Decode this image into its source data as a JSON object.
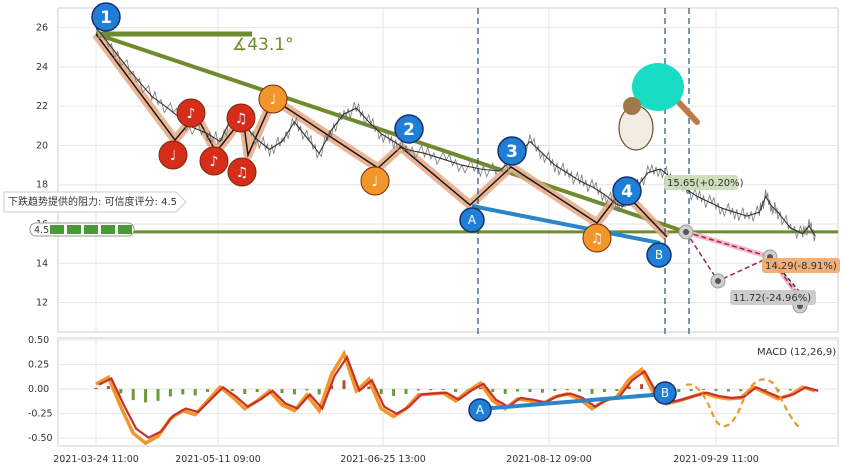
{
  "chart_data": [
    {
      "type": "line",
      "panel": "price",
      "ylim": [
        10.5,
        27
      ],
      "yticks": [
        12,
        14,
        16,
        18,
        20,
        22,
        24,
        26
      ],
      "grid": true,
      "x_categories": [
        "2021-03-24 11:00",
        "2021-05-11 09:00",
        "2021-06-25 13:00",
        "2021-08-12 09:00",
        "2021-09-29 11:00"
      ],
      "series": [
        {
          "values": [
            [
              0,
              26.0
            ],
            [
              3,
              24.8
            ],
            [
              6,
              23.6
            ],
            [
              9,
              22.5
            ],
            [
              12,
              21.8
            ],
            [
              15,
              21.0
            ],
            [
              18,
              20.6
            ],
            [
              20,
              20.2
            ],
            [
              22,
              21.5
            ],
            [
              24,
              21.0
            ],
            [
              26,
              20.3
            ],
            [
              28,
              19.8
            ],
            [
              30,
              20.2
            ],
            [
              32,
              21.2
            ],
            [
              34,
              20.4
            ],
            [
              36,
              19.6
            ],
            [
              38,
              20.8
            ],
            [
              40,
              21.6
            ],
            [
              42,
              21.9
            ],
            [
              44,
              21.2
            ],
            [
              46,
              20.6
            ],
            [
              48,
              20.2
            ],
            [
              50,
              19.8
            ],
            [
              53,
              19.6
            ],
            [
              56,
              19.3
            ],
            [
              59,
              19.0
            ],
            [
              62,
              18.8
            ],
            [
              65,
              18.7
            ],
            [
              68,
              19.5
            ],
            [
              70,
              20.2
            ],
            [
              72,
              19.6
            ],
            [
              74,
              19.0
            ],
            [
              76,
              18.6
            ],
            [
              78,
              18.2
            ],
            [
              80,
              17.9
            ],
            [
              82,
              17.5
            ],
            [
              84,
              17.0
            ],
            [
              85,
              16.9
            ],
            [
              87,
              17.8
            ],
            [
              89,
              18.6
            ],
            [
              91,
              18.8
            ],
            [
              93,
              18.3
            ],
            [
              95,
              17.8
            ],
            [
              97,
              17.4
            ],
            [
              99,
              17.1
            ],
            [
              101,
              16.8
            ],
            [
              103,
              16.6
            ],
            [
              105,
              16.4
            ],
            [
              107,
              16.6
            ],
            [
              108,
              17.4
            ],
            [
              109,
              16.9
            ],
            [
              110,
              16.6
            ],
            [
              112,
              15.8
            ],
            [
              114,
              15.5
            ],
            [
              115,
              15.9
            ],
            [
              116,
              15.4
            ]
          ]
        }
      ],
      "annotations": {
        "angle_label": "∡43.1°",
        "support_label": "下跌趋势提供的阻力: 可信度评分: 4.5",
        "score_label": "4.5",
        "callouts": [
          "15.65(+0.20%)",
          "14.29(-8.91%)",
          "11.72(-24.96%)"
        ],
        "wave_labels": [
          "1",
          "2",
          "3",
          "4"
        ],
        "divergence_labels": [
          "A",
          "B"
        ],
        "horizontal_level": 15.6
      }
    },
    {
      "type": "line",
      "panel": "macd",
      "title": "MACD (12,26,9)",
      "ylim": [
        -0.58,
        0.52
      ],
      "yticks": [
        0.5,
        0.25,
        0.0,
        -0.25,
        -0.5
      ],
      "ytick_labels": [
        "0.50",
        "0.25",
        "0.00",
        "-0.25",
        "-0.50"
      ],
      "grid": true,
      "x_categories": [
        "2021-03-24 11:00",
        "2021-05-11 09:00",
        "2021-06-25 13:00",
        "2021-08-12 09:00",
        "2021-09-29 11:00"
      ],
      "series": [
        {
          "values": [
            [
              0,
              0.05
            ],
            [
              2,
              0.12
            ],
            [
              4,
              -0.18
            ],
            [
              6,
              -0.45
            ],
            [
              8,
              -0.55
            ],
            [
              10,
              -0.48
            ],
            [
              12,
              -0.3
            ],
            [
              14,
              -0.22
            ],
            [
              16,
              -0.26
            ],
            [
              18,
              -0.12
            ],
            [
              20,
              0.02
            ],
            [
              22,
              -0.08
            ],
            [
              24,
              -0.2
            ],
            [
              26,
              -0.12
            ],
            [
              28,
              -0.02
            ],
            [
              30,
              -0.16
            ],
            [
              32,
              -0.22
            ],
            [
              34,
              -0.06
            ],
            [
              36,
              -0.22
            ],
            [
              38,
              0.15
            ],
            [
              40,
              0.36
            ],
            [
              42,
              -0.02
            ],
            [
              44,
              0.1
            ],
            [
              46,
              -0.2
            ],
            [
              48,
              -0.28
            ],
            [
              50,
              -0.2
            ],
            [
              52,
              -0.06
            ],
            [
              54,
              -0.05
            ],
            [
              56,
              -0.04
            ],
            [
              58,
              -0.12
            ],
            [
              60,
              -0.02
            ],
            [
              62,
              0.06
            ],
            [
              64,
              -0.12
            ],
            [
              66,
              -0.2
            ],
            [
              68,
              -0.1
            ],
            [
              70,
              -0.12
            ],
            [
              72,
              -0.15
            ],
            [
              74,
              -0.08
            ],
            [
              76,
              -0.05
            ],
            [
              78,
              -0.1
            ],
            [
              80,
              -0.2
            ],
            [
              82,
              -0.12
            ],
            [
              84,
              -0.08
            ],
            [
              86,
              0.1
            ],
            [
              88,
              0.2
            ],
            [
              90,
              -0.05
            ],
            [
              92,
              -0.15
            ],
            [
              94,
              -0.12
            ],
            [
              96,
              -0.08
            ],
            [
              98,
              -0.04
            ],
            [
              100,
              -0.08
            ],
            [
              102,
              -0.1
            ],
            [
              104,
              -0.09
            ],
            [
              106,
              0.02
            ],
            [
              108,
              -0.04
            ],
            [
              110,
              -0.1
            ],
            [
              112,
              -0.06
            ],
            [
              114,
              0.02
            ],
            [
              116,
              -0.02
            ]
          ]
        }
      ],
      "annotations": {
        "divergence_labels": [
          "A",
          "B"
        ]
      }
    }
  ],
  "colors": {
    "trend_green": "#6e8c2e",
    "wave_orange": "#e8a882",
    "divergence_blue": "#2a86c8",
    "marker_blue": "#1f7ed6",
    "marker_red": "#d62d1a",
    "marker_orange": "#f0962b",
    "macd_orange": "#f0962b",
    "macd_red": "#c8302a",
    "dashed_vline": "#3a5a7a"
  }
}
